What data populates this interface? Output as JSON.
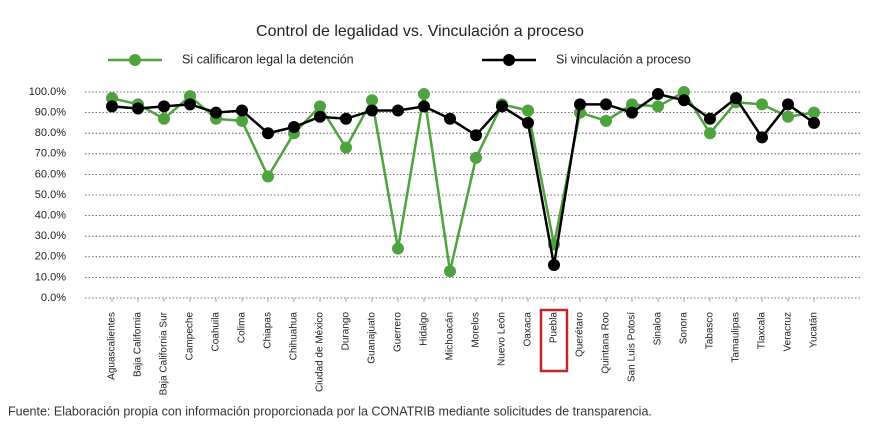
{
  "chart_data": {
    "type": "line",
    "title": "Control de legalidad vs. Vinculación a proceso",
    "categories": [
      "Aguascalientes",
      "Baja California",
      "Baja California Sur",
      "Campeche",
      "Coahuila",
      "Colima",
      "Chiapas",
      "Chihuahua",
      "Ciudad de México",
      "Durango",
      "Guanajuato",
      "Guerrero",
      "Hidalgo",
      "Michoacán",
      "Morelos",
      "Nuevo León",
      "Oaxaca",
      "Puebla",
      "Querétaro",
      "Quintana Roo",
      "San Luis Potosí",
      "Sinaloa",
      "Sonora",
      "Tabasco",
      "Tamaulipas",
      "Tlaxcala",
      "Veracruz",
      "Yucatán"
    ],
    "series": [
      {
        "name": "Si calificaron legal la detención",
        "color": "#4ea23f",
        "values": [
          97,
          94,
          87,
          98,
          87,
          86,
          59,
          80,
          93,
          73,
          96,
          24,
          99,
          13,
          68,
          94,
          91,
          26,
          90,
          86,
          94,
          93,
          100,
          80,
          95,
          94,
          88,
          90
        ]
      },
      {
        "name": "Si vinculación a proceso",
        "color": "#000000",
        "values": [
          93,
          92,
          93,
          94,
          90,
          91,
          80,
          83,
          88,
          87,
          91,
          91,
          93,
          87,
          79,
          93,
          85,
          16,
          94,
          94,
          90,
          99,
          96,
          87,
          97,
          78,
          94,
          85
        ]
      }
    ],
    "ylim": [
      0,
      100
    ],
    "yticks": [
      {
        "value": 0,
        "label": "0.0%"
      },
      {
        "value": 10,
        "label": "10.0%"
      },
      {
        "value": 20,
        "label": "20.0%"
      },
      {
        "value": 30,
        "label": "30.0%"
      },
      {
        "value": 40,
        "label": "40.0%"
      },
      {
        "value": 50,
        "label": "50.0%"
      },
      {
        "value": 60,
        "label": "60.0%"
      },
      {
        "value": 70,
        "label": "70.0%"
      },
      {
        "value": 80,
        "label": "80.0%"
      },
      {
        "value": 90,
        "label": "90.0%"
      },
      {
        "value": 100,
        "label": "100.0%"
      }
    ],
    "grid": true,
    "highlight": {
      "category": "Puebla",
      "color": "#c0272d"
    },
    "note": "Fuente: Elaboración propia con información proporcionada por la CONATRIB mediante solicitudes de transparencia."
  }
}
